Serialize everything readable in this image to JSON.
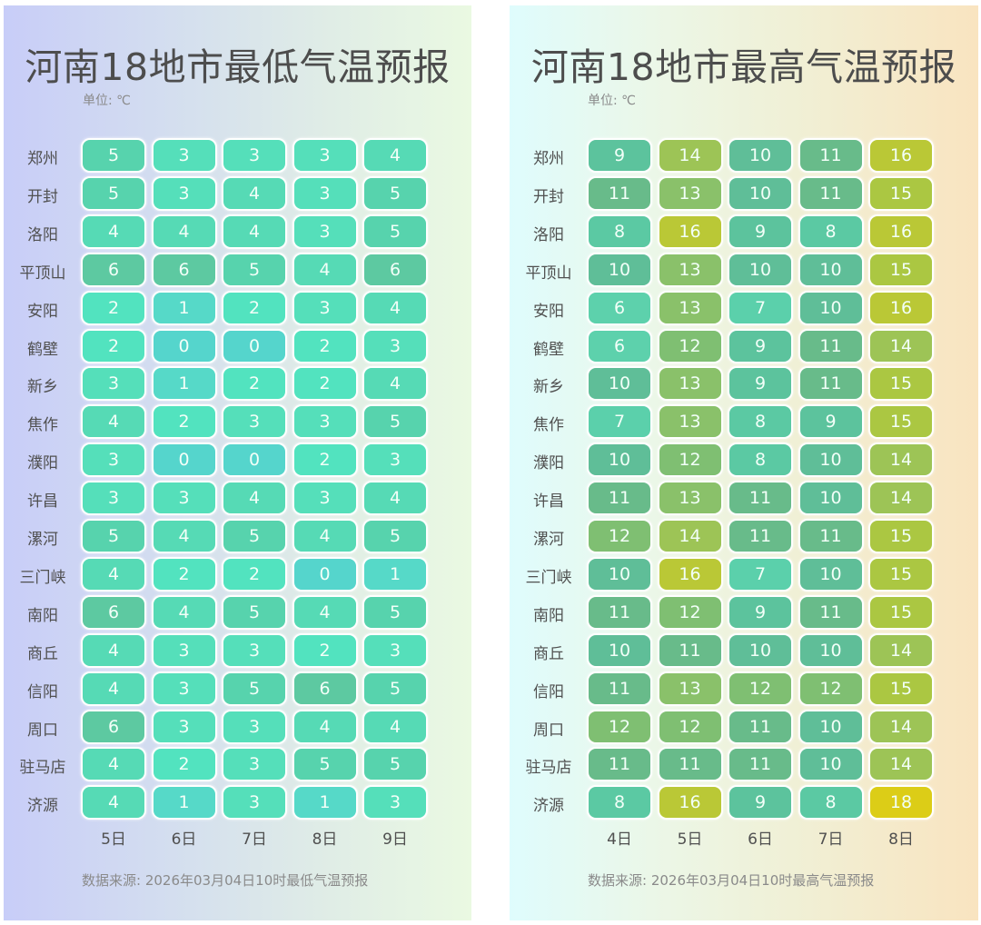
{
  "chart_data": [
    {
      "type": "table",
      "title": "河南18地市最低气温预报",
      "unit": "单位: ℃",
      "categories": [
        "5日",
        "6日",
        "7日",
        "8日",
        "9日"
      ],
      "cities": [
        "郑州",
        "开封",
        "洛阳",
        "平顶山",
        "安阳",
        "鹤壁",
        "新乡",
        "焦作",
        "濮阳",
        "许昌",
        "漯河",
        "三门峡",
        "南阳",
        "商丘",
        "信阳",
        "周口",
        "驻马店",
        "济源"
      ],
      "values": [
        [
          5,
          3,
          3,
          3,
          4
        ],
        [
          5,
          3,
          4,
          3,
          5
        ],
        [
          4,
          4,
          4,
          3,
          5
        ],
        [
          6,
          6,
          5,
          4,
          6
        ],
        [
          2,
          1,
          2,
          3,
          4
        ],
        [
          2,
          0,
          0,
          2,
          3
        ],
        [
          3,
          1,
          2,
          2,
          4
        ],
        [
          4,
          2,
          3,
          3,
          5
        ],
        [
          3,
          0,
          0,
          2,
          3
        ],
        [
          3,
          3,
          4,
          3,
          4
        ],
        [
          5,
          4,
          5,
          4,
          5
        ],
        [
          4,
          2,
          2,
          0,
          1
        ],
        [
          6,
          4,
          5,
          4,
          5
        ],
        [
          4,
          3,
          3,
          2,
          3
        ],
        [
          4,
          3,
          5,
          6,
          5
        ],
        [
          6,
          3,
          3,
          4,
          4
        ],
        [
          4,
          2,
          3,
          5,
          5
        ],
        [
          4,
          1,
          3,
          1,
          3
        ]
      ],
      "source": "数据来源: 2026年03月04日10时最低气温预报"
    },
    {
      "type": "table",
      "title": "河南18地市最高气温预报",
      "unit": "单位: ℃",
      "categories": [
        "4日",
        "5日",
        "6日",
        "7日",
        "8日"
      ],
      "cities": [
        "郑州",
        "开封",
        "洛阳",
        "平顶山",
        "安阳",
        "鹤壁",
        "新乡",
        "焦作",
        "濮阳",
        "许昌",
        "漯河",
        "三门峡",
        "南阳",
        "商丘",
        "信阳",
        "周口",
        "驻马店",
        "济源"
      ],
      "values": [
        [
          9,
          14,
          10,
          11,
          16
        ],
        [
          11,
          13,
          10,
          11,
          15
        ],
        [
          8,
          16,
          9,
          8,
          16
        ],
        [
          10,
          13,
          10,
          10,
          15
        ],
        [
          6,
          13,
          7,
          10,
          16
        ],
        [
          6,
          12,
          9,
          11,
          14
        ],
        [
          10,
          13,
          9,
          11,
          15
        ],
        [
          7,
          13,
          8,
          9,
          15
        ],
        [
          10,
          12,
          8,
          10,
          14
        ],
        [
          11,
          13,
          11,
          10,
          14
        ],
        [
          12,
          14,
          11,
          11,
          15
        ],
        [
          10,
          16,
          7,
          10,
          15
        ],
        [
          11,
          12,
          9,
          11,
          15
        ],
        [
          10,
          11,
          10,
          10,
          14
        ],
        [
          11,
          13,
          12,
          12,
          15
        ],
        [
          12,
          12,
          11,
          10,
          14
        ],
        [
          11,
          11,
          11,
          10,
          14
        ],
        [
          8,
          16,
          9,
          8,
          18
        ]
      ],
      "source": "数据来源: 2026年03月04日10时最高气温预报"
    }
  ],
  "colors": {
    "low": {
      "0": "#55d5cc",
      "1": "#56d9c8",
      "2": "#52e3bf",
      "3": "#55dfba",
      "4": "#56dab5",
      "5": "#57d3ad",
      "6": "#5dc9a1"
    },
    "high": {
      "6": "#5dd1ac",
      "7": "#5bd0ab",
      "8": "#5bc9a3",
      "9": "#5cc39d",
      "10": "#5fbe98",
      "11": "#68bb8a",
      "12": "#7fbf72",
      "13": "#8ac16a",
      "14": "#9dc456",
      "15": "#abc742",
      "16": "#bac836",
      "17": "#cbca25",
      "18": "#dccd17"
    }
  }
}
